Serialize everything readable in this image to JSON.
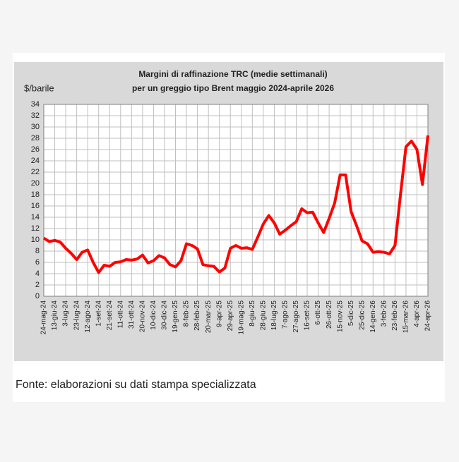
{
  "chart_data": {
    "type": "line",
    "title": "Margini di raffinazione TRC (medie settimanali)",
    "subtitle": "per un greggio tipo Brent maggio 2024-aprile 2026",
    "y_label": "$/barile",
    "source": "Fonte: elaborazioni su dati stampa specializzata",
    "categories": [
      "24-mag-24",
      null,
      "13-giu-24",
      null,
      "3-lug-24",
      null,
      "23-lug-24",
      null,
      "12-ago-24",
      null,
      "1-set-24",
      null,
      "21-set-24",
      null,
      "11-ott-24",
      null,
      "31-ott-24",
      null,
      "20-nov-24",
      null,
      "10-dic-24",
      null,
      "30-dic-24",
      null,
      "19-gen-25",
      null,
      "8-feb-25",
      null,
      "28-feb-25",
      null,
      "20-mar-25",
      null,
      "9-apr-25",
      null,
      "29-apr-25",
      null,
      "19-mag-25",
      null,
      "8-giu-25",
      null,
      "28-giu-25",
      null,
      "18-lug-25",
      null,
      "7-ago-25",
      null,
      "27-ago-25",
      null,
      "16-set-25",
      null,
      "6-ott-25",
      null,
      "26-ott-25",
      null,
      "15-nov-25",
      null,
      "5-dic-25",
      null,
      "25-dic-25",
      null,
      "14-gen-26",
      null,
      "3-feb-26",
      null,
      "23-feb-26",
      null,
      "15-mar-26",
      null,
      "4-apr-26",
      null,
      "24-apr-26"
    ],
    "series": [
      {
        "color": "#ff0000",
        "values": [
          10.3,
          9.7,
          9.9,
          9.6,
          8.5,
          7.6,
          6.5,
          7.8,
          8.2,
          6.0,
          4.2,
          5.5,
          5.3,
          6.0,
          6.1,
          6.5,
          6.4,
          6.6,
          7.3,
          5.9,
          6.3,
          7.2,
          6.8,
          5.6,
          5.2,
          6.3,
          9.3,
          9.0,
          8.4,
          5.6,
          5.4,
          5.3,
          4.3,
          5.0,
          8.5,
          9.0,
          8.5,
          8.6,
          8.3,
          10.5,
          12.8,
          14.3,
          13.0,
          11.0,
          11.7,
          12.5,
          13.2,
          15.5,
          14.8,
          14.9,
          13.0,
          11.3,
          13.8,
          16.5,
          21.5,
          21.5,
          15.0,
          12.5,
          9.8,
          9.3,
          7.8,
          7.9,
          7.8,
          7.5,
          9.0,
          18.0,
          26.5,
          27.5,
          26.0,
          19.8,
          28.5
        ]
      }
    ],
    "ylim": [
      0,
      34
    ],
    "yticks": [
      0,
      2,
      4,
      6,
      8,
      10,
      12,
      14,
      16,
      18,
      20,
      22,
      24,
      26,
      28,
      30,
      32,
      34
    ],
    "grid": true
  }
}
